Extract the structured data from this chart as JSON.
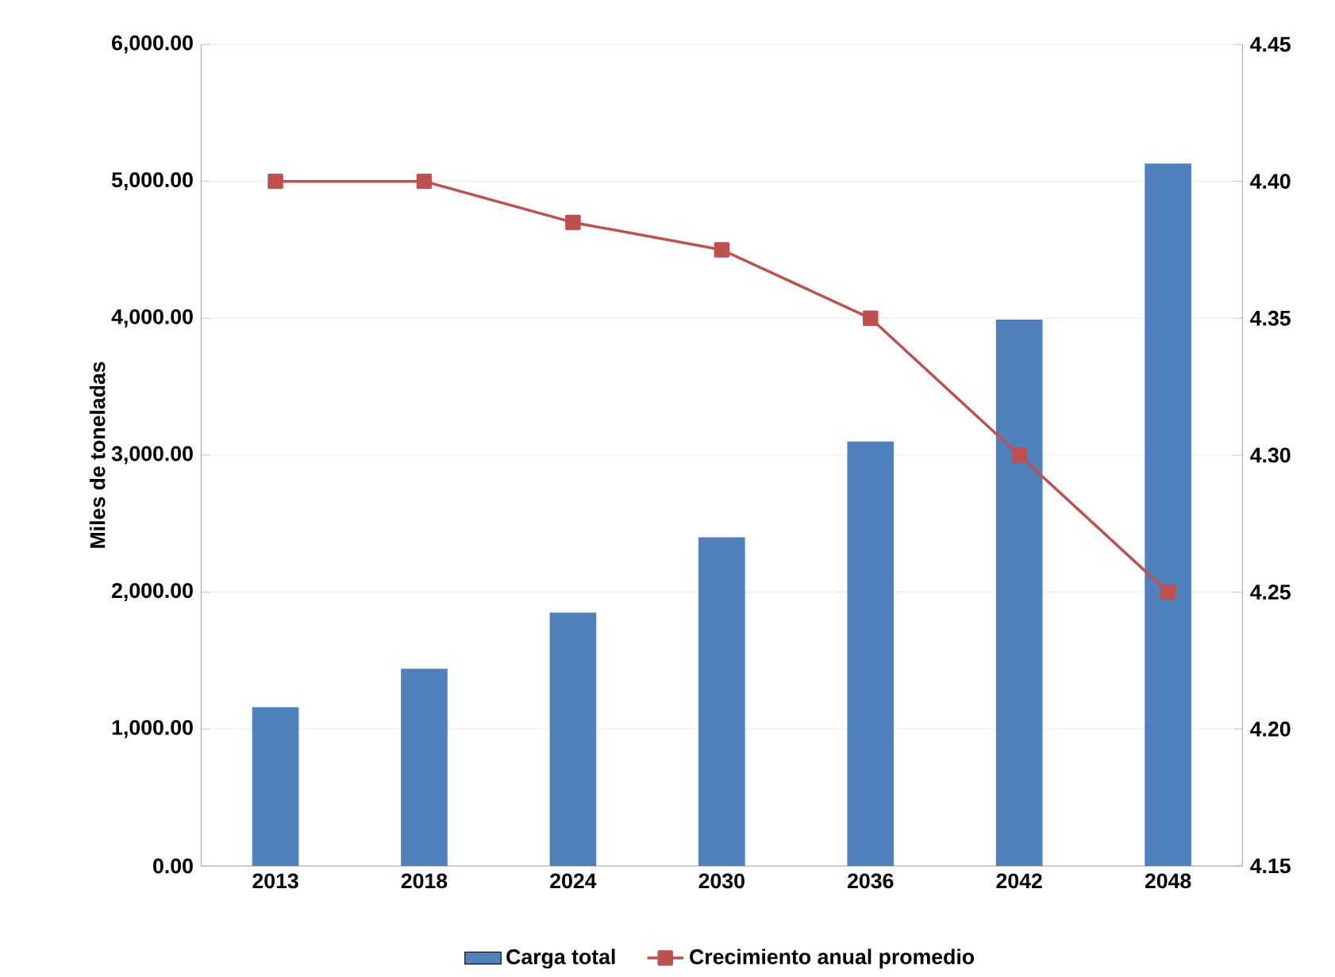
{
  "chart_data": {
    "type": "bar",
    "categories": [
      "2013",
      "2018",
      "2024",
      "2030",
      "2036",
      "2042",
      "2048"
    ],
    "ylabel": "Miles de toneladas",
    "series": [
      {
        "name": "Carga total",
        "color": "#4f81bd",
        "values": [
          1160,
          1440,
          1850,
          2400,
          3100,
          3990,
          5130
        ]
      },
      {
        "name": "Crecimiento anual promedio",
        "type": "line",
        "axis": "y2",
        "color": "#c0504d",
        "marker": "square",
        "values": [
          4.4,
          4.4,
          4.385,
          4.375,
          4.35,
          4.3,
          4.25
        ]
      }
    ],
    "ylim": [
      0,
      6000
    ],
    "yticks": [
      {
        "value": 0,
        "label": "0.00"
      },
      {
        "value": 1000,
        "label": "1,000.00"
      },
      {
        "value": 2000,
        "label": "2,000.00"
      },
      {
        "value": 3000,
        "label": "3,000.00"
      },
      {
        "value": 4000,
        "label": "4,000.00"
      },
      {
        "value": 5000,
        "label": "5,000.00"
      },
      {
        "value": 6000,
        "label": "6,000.00"
      }
    ],
    "y2lim": [
      4.15,
      4.45
    ],
    "y2ticks": [
      4.15,
      {
        "value": 4.2,
        "label": "4.20"
      },
      4.25,
      {
        "value": 4.3,
        "label": "4.30"
      },
      4.35,
      {
        "value": 4.4,
        "label": "4.40"
      },
      4.45
    ],
    "grid": "y",
    "legend": "bottom"
  }
}
